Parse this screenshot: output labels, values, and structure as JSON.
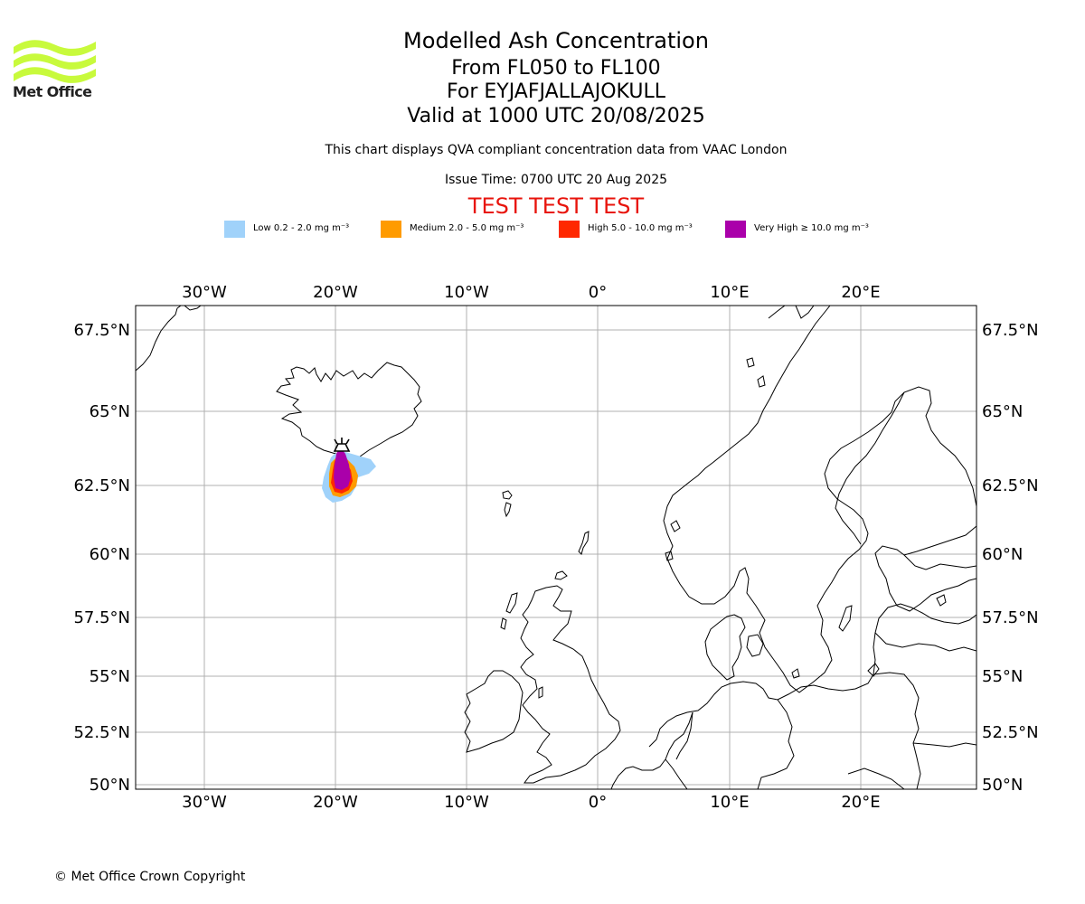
{
  "logo": {
    "text": "Met Office",
    "color": "#c8fa3c"
  },
  "title": {
    "main": "Modelled Ash Concentration",
    "levels": "From FL050 to FL100",
    "volcano": "For EYJAFJALLAJOKULL",
    "valid": "Valid at 1000 UTC 20/08/2025",
    "compliance": "This chart displays QVA compliant concentration data from VAAC London",
    "issue": "Issue Time: 0700 UTC 20 Aug 2025",
    "test": "TEST TEST TEST"
  },
  "legend": [
    {
      "label": "Low 0.2 - 2.0 mg m⁻³",
      "color": "#a0d2fa"
    },
    {
      "label": "Medium 2.0 - 5.0 mg m⁻³",
      "color": "#ff9b00"
    },
    {
      "label": "High 5.0 - 10.0 mg m⁻³",
      "color": "#ff2800"
    },
    {
      "label": "Very High ≥ 10.0 mg m⁻³",
      "color": "#aa00aa"
    }
  ],
  "map": {
    "lon_range": [
      -35,
      29
    ],
    "lat_range": [
      49.9,
      68.2
    ],
    "lon_ticks": [
      "30°W",
      "20°W",
      "10°W",
      "0°",
      "10°E",
      "20°E"
    ],
    "lat_ticks": [
      "67.5°N",
      "65°N",
      "62.5°N",
      "60°N",
      "57.5°N",
      "55°N",
      "52.5°N",
      "50°N"
    ],
    "volcano_symbol": "volcano-icon",
    "grid": true
  },
  "copyright": "© Met Office Crown Copyright"
}
